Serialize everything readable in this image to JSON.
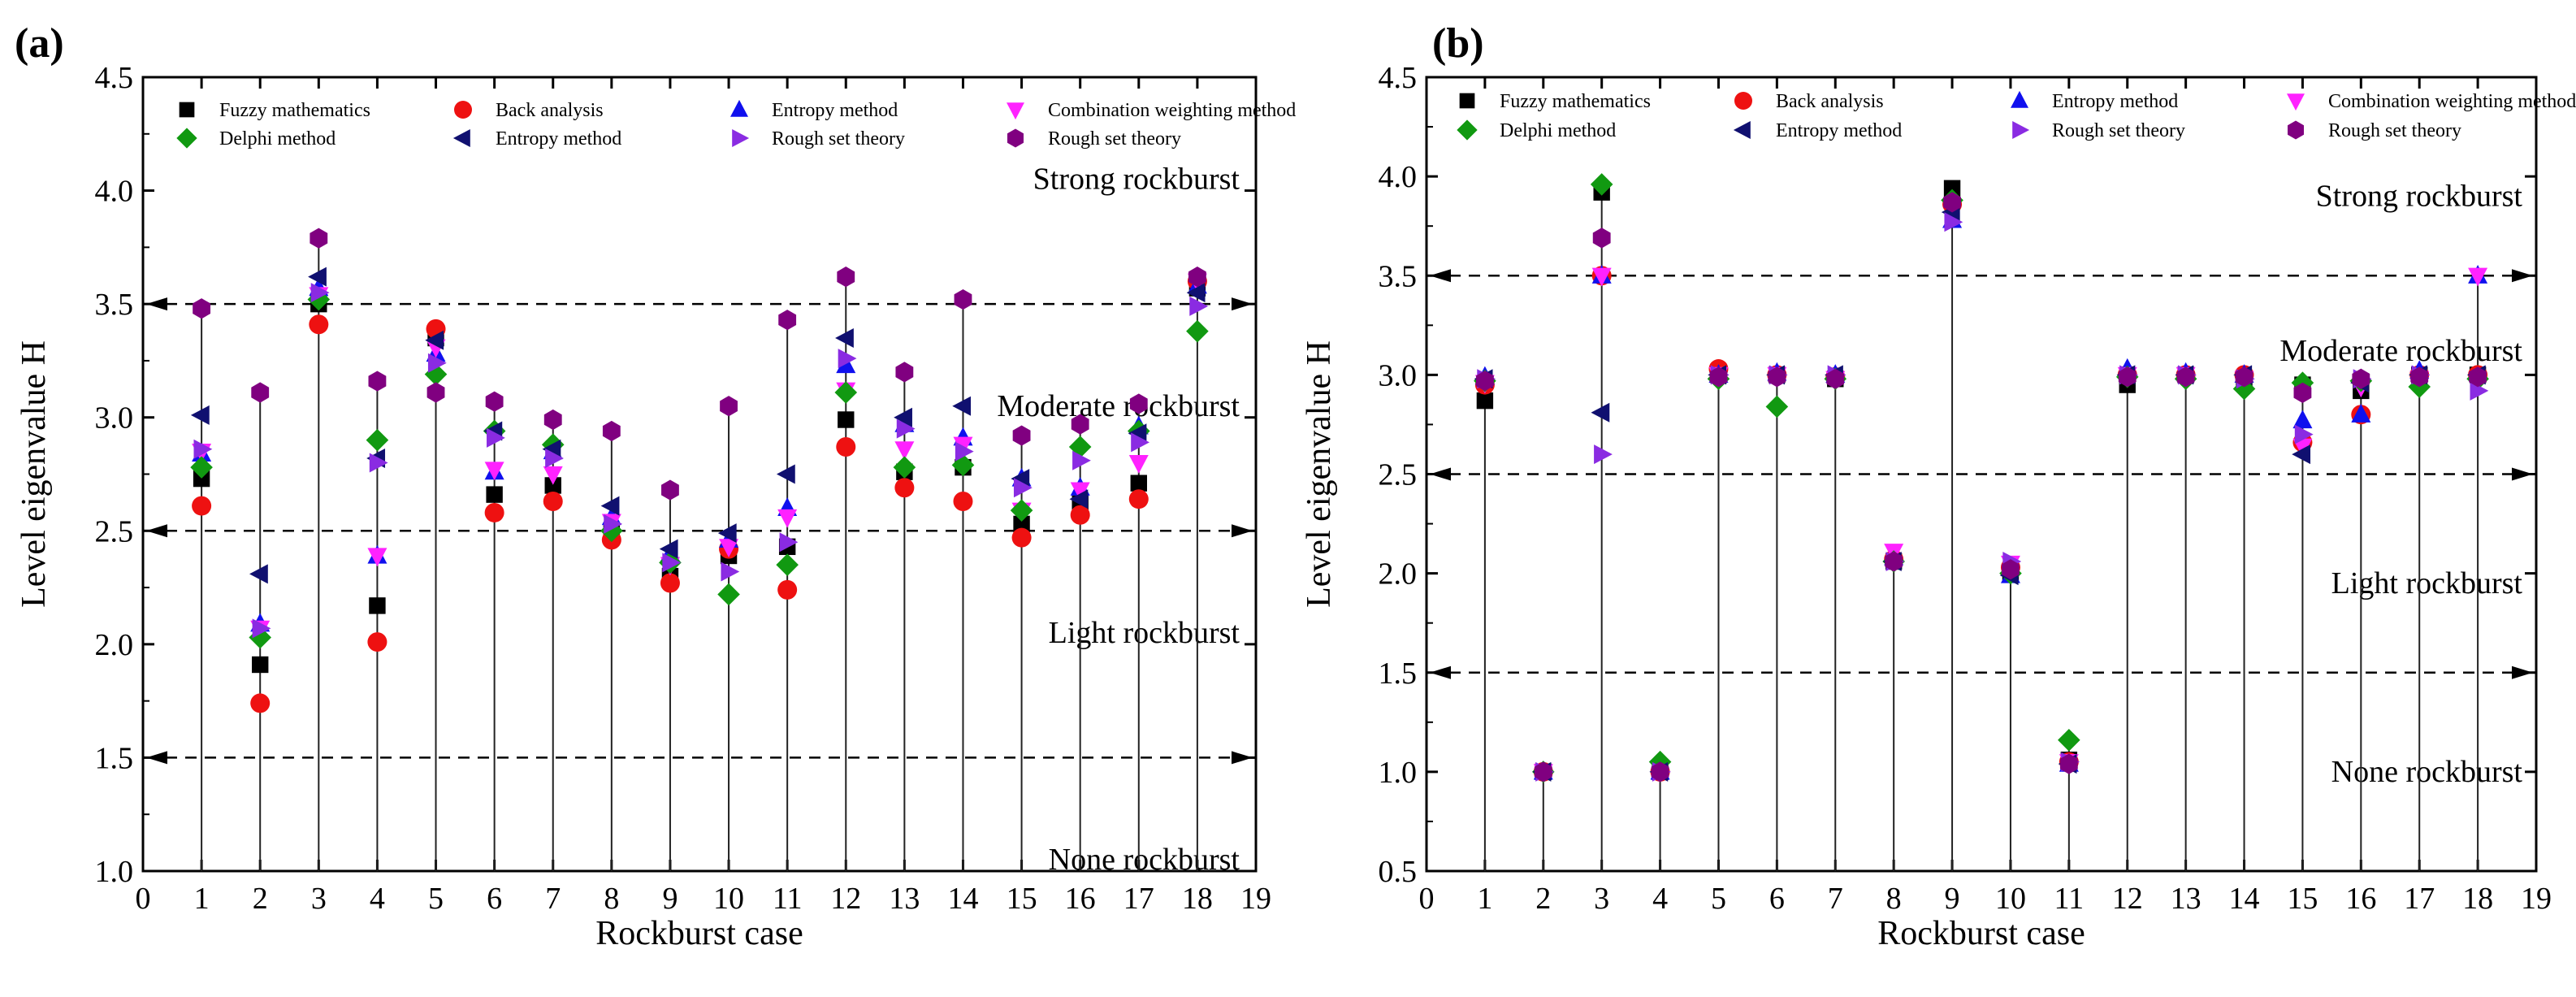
{
  "chart_data": [
    {
      "type": "scatter",
      "panel": "(a)",
      "xlabel": "Rockburst case",
      "ylabel": "Level eigenvalue H",
      "xlim": [
        0,
        19
      ],
      "ylim": [
        1.0,
        4.5
      ],
      "xticks": [
        0,
        1,
        2,
        3,
        4,
        5,
        6,
        7,
        8,
        9,
        10,
        11,
        12,
        13,
        14,
        15,
        16,
        17,
        18,
        19
      ],
      "yticks": [
        "1.0",
        "1.5",
        "2.0",
        "2.5",
        "3.0",
        "3.5",
        "4.0",
        "4.5"
      ],
      "thresholds": [
        1.5,
        2.5,
        3.5
      ],
      "zones": [
        {
          "label": "Strong rockburst",
          "y": 4.05
        },
        {
          "label": "Moderate rockburst",
          "y": 3.05
        },
        {
          "label": "Light rockburst",
          "y": 2.05
        },
        {
          "label": "None rockburst",
          "y": 1.05
        }
      ],
      "legend": [
        {
          "name": "Fuzzy mathematics",
          "marker": "square",
          "color": "#000000"
        },
        {
          "name": "Back analysis",
          "marker": "circle",
          "color": "#ee1111"
        },
        {
          "name": "Entropy method",
          "marker": "triangle-up",
          "color": "#1010ee"
        },
        {
          "name": "Combination weighting method",
          "marker": "triangle-down",
          "color": "#ff22ff"
        },
        {
          "name": "Delphi method",
          "marker": "diamond",
          "color": "#119911"
        },
        {
          "name": "Entropy method",
          "marker": "triangle-left",
          "color": "#101070"
        },
        {
          "name": "Rough set theory",
          "marker": "triangle-right",
          "color": "#8a2be2"
        },
        {
          "name": "Rough set theory",
          "marker": "hexagon",
          "color": "#800080"
        }
      ],
      "series": [
        {
          "name": "Fuzzy mathematics",
          "values": [
            2.73,
            1.91,
            3.5,
            2.17,
            3.35,
            2.66,
            2.7,
            2.49,
            2.3,
            2.39,
            2.43,
            2.99,
            2.76,
            2.78,
            2.53,
            2.62,
            2.71,
            3.57
          ]
        },
        {
          "name": "Back analysis",
          "values": [
            2.61,
            1.74,
            3.41,
            2.01,
            3.39,
            2.58,
            2.63,
            2.46,
            2.27,
            2.42,
            2.24,
            2.87,
            2.69,
            2.63,
            2.47,
            2.57,
            2.64,
            3.6
          ]
        },
        {
          "name": "Entropy method",
          "values": [
            2.84,
            2.09,
            3.57,
            2.39,
            3.28,
            2.76,
            2.85,
            2.56,
            2.4,
            2.46,
            2.6,
            3.23,
            2.97,
            2.91,
            2.73,
            2.69,
            2.96,
            3.58
          ]
        },
        {
          "name": "Combination weighting method",
          "values": [
            2.85,
            2.07,
            3.54,
            2.39,
            3.31,
            2.77,
            2.75,
            2.54,
            2.35,
            2.43,
            2.56,
            3.12,
            2.86,
            2.88,
            2.59,
            2.68,
            2.8,
            3.6
          ]
        },
        {
          "name": "Delphi method",
          "values": [
            2.78,
            2.03,
            3.52,
            2.9,
            3.19,
            2.94,
            2.88,
            2.5,
            2.36,
            2.22,
            2.35,
            3.11,
            2.78,
            2.79,
            2.59,
            2.87,
            2.94,
            3.38
          ]
        },
        {
          "name": "Entropy method",
          "values": [
            3.01,
            2.31,
            3.62,
            2.82,
            3.34,
            2.94,
            2.86,
            2.61,
            2.42,
            2.49,
            2.75,
            3.35,
            3.0,
            3.05,
            2.73,
            2.64,
            2.93,
            3.55
          ]
        },
        {
          "name": "Rough set theory",
          "values": [
            2.86,
            2.07,
            3.55,
            2.8,
            3.24,
            2.91,
            2.82,
            2.53,
            2.36,
            2.32,
            2.45,
            3.26,
            2.95,
            2.85,
            2.69,
            2.81,
            2.89,
            3.49
          ]
        },
        {
          "name": "Rough set theory",
          "values": [
            3.48,
            3.11,
            3.79,
            3.16,
            3.11,
            3.07,
            2.99,
            2.94,
            2.68,
            3.05,
            3.43,
            3.62,
            3.2,
            3.52,
            2.92,
            2.97,
            3.06,
            3.62
          ]
        }
      ]
    },
    {
      "type": "scatter",
      "panel": "(b)",
      "xlabel": "Rockburst case",
      "ylabel": "Level eigenvalue H",
      "xlim": [
        0,
        19
      ],
      "ylim": [
        0.5,
        4.5
      ],
      "xticks": [
        0,
        1,
        2,
        3,
        4,
        5,
        6,
        7,
        8,
        9,
        10,
        11,
        12,
        13,
        14,
        15,
        16,
        17,
        18,
        19
      ],
      "yticks": [
        "0.5",
        "1.0",
        "1.5",
        "2.0",
        "2.5",
        "3.0",
        "3.5",
        "4.0",
        "4.5"
      ],
      "thresholds": [
        1.5,
        2.5,
        3.5
      ],
      "zones": [
        {
          "label": "Strong rockburst",
          "y": 3.9
        },
        {
          "label": "Moderate rockburst",
          "y": 3.12
        },
        {
          "label": "Light rockburst",
          "y": 1.95
        },
        {
          "label": "None rockburst",
          "y": 1.0
        }
      ],
      "legend": [
        {
          "name": "Fuzzy mathematics",
          "marker": "square",
          "color": "#000000"
        },
        {
          "name": "Back analysis",
          "marker": "circle",
          "color": "#ee1111"
        },
        {
          "name": "Entropy method",
          "marker": "triangle-up",
          "color": "#1010ee"
        },
        {
          "name": "Combination weighting method",
          "marker": "triangle-down",
          "color": "#ff22ff"
        },
        {
          "name": "Delphi method",
          "marker": "diamond",
          "color": "#119911"
        },
        {
          "name": "Entropy method",
          "marker": "triangle-left",
          "color": "#101070"
        },
        {
          "name": "Rough set theory",
          "marker": "triangle-right",
          "color": "#8a2be2"
        },
        {
          "name": "Rough set theory",
          "marker": "hexagon",
          "color": "#800080"
        }
      ],
      "series": [
        {
          "name": "Fuzzy mathematics",
          "values": [
            2.87,
            1.0,
            3.92,
            1.0,
            3.0,
            3.0,
            2.98,
            2.06,
            3.94,
            2.0,
            1.06,
            2.95,
            3.0,
            2.98,
            2.95,
            2.92,
            3.0,
            3.0
          ]
        },
        {
          "name": "Back analysis",
          "values": [
            2.95,
            1.0,
            3.5,
            1.0,
            3.03,
            3.0,
            2.99,
            2.07,
            3.86,
            2.03,
            1.05,
            3.0,
            3.0,
            3.0,
            2.66,
            2.8,
            3.0,
            3.0
          ]
        },
        {
          "name": "Entropy method",
          "values": [
            2.99,
            1.0,
            3.5,
            1.0,
            3.0,
            3.01,
            3.0,
            2.08,
            3.78,
            1.99,
            1.04,
            3.03,
            3.01,
            3.0,
            2.77,
            2.8,
            3.02,
            3.5
          ]
        },
        {
          "name": "Combination weighting method",
          "values": [
            2.96,
            1.0,
            3.5,
            1.01,
            3.0,
            3.0,
            2.98,
            2.11,
            3.84,
            2.05,
            1.05,
            3.0,
            3.0,
            2.98,
            2.64,
            2.94,
            2.98,
            3.5
          ]
        },
        {
          "name": "Delphi method",
          "values": [
            2.97,
            1.0,
            3.96,
            1.05,
            2.98,
            2.84,
            2.98,
            2.06,
            3.88,
            2.0,
            1.16,
            2.99,
            2.98,
            2.93,
            2.96,
            2.97,
            2.94,
            2.98
          ]
        },
        {
          "name": "Entropy method",
          "values": [
            2.98,
            1.0,
            2.81,
            1.0,
            3.0,
            3.0,
            3.0,
            2.06,
            3.82,
            1.99,
            1.04,
            3.0,
            3.0,
            3.0,
            2.6,
            2.96,
            3.0,
            3.0
          ]
        },
        {
          "name": "Rough set theory",
          "values": [
            2.98,
            1.0,
            2.6,
            1.0,
            3.0,
            3.0,
            3.0,
            2.06,
            3.77,
            2.06,
            1.05,
            3.0,
            3.0,
            2.98,
            2.7,
            2.98,
            3.0,
            2.92
          ]
        },
        {
          "name": "Rough set theory",
          "values": [
            2.97,
            1.0,
            3.69,
            1.0,
            2.99,
            2.99,
            2.98,
            2.06,
            3.87,
            2.02,
            1.04,
            2.99,
            2.99,
            2.99,
            2.91,
            2.98,
            2.99,
            2.99
          ]
        }
      ]
    }
  ]
}
